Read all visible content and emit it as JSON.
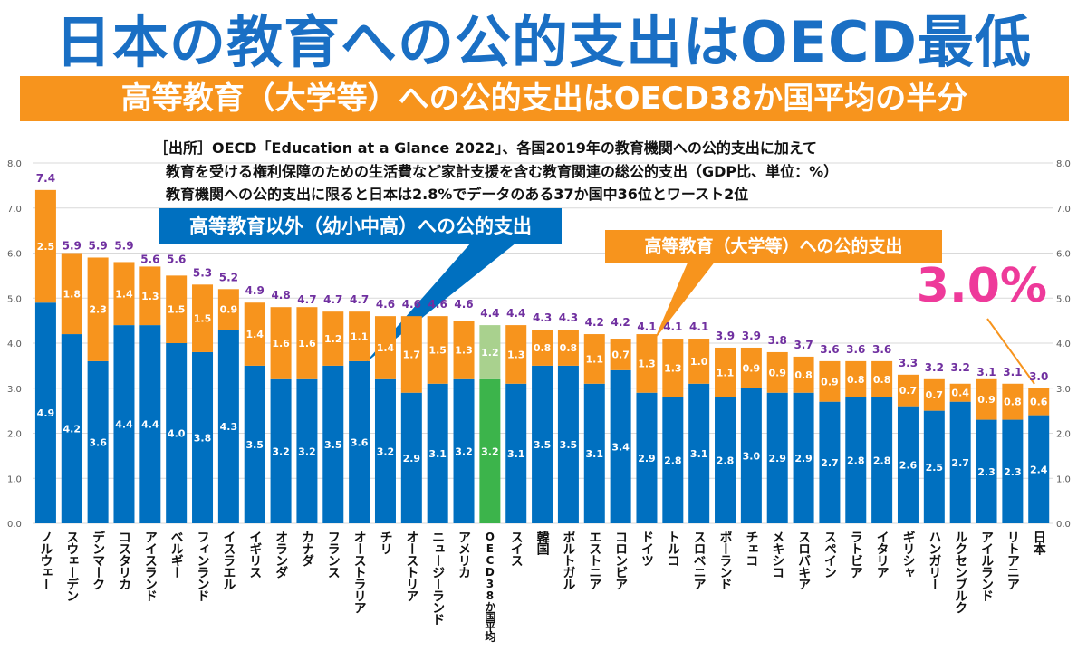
{
  "title": "日本の教育への公的支出はOECD最低",
  "subtitle": "高等教育（大学等）への公的支出はOECD38か国平均の半分",
  "source_lines": [
    "［出所］OECD「Education at a Glance 2022」、各国2019年の教育機関への公的支出に加えて",
    "教育を受ける権利保障のための生活費など家計支援を含む教育関連の総公的支出（GDP比、単位：%）",
    "教育機関への公的支出に限ると日本は2.8%でデータのある37か国中36位とワースト2位"
  ],
  "callouts": {
    "non_tertiary": "高等教育以外（幼小中高）への公的支出",
    "tertiary": "高等教育（大学等）への公的支出",
    "japan_total": "3.0%"
  },
  "colors": {
    "non_tertiary": "#0070c0",
    "tertiary": "#f7941d",
    "oecd_non_tertiary": "#3cb44b",
    "oecd_tertiary": "#a9d18e",
    "total_label": "#7030a0",
    "highlight": "#ee3a9a"
  },
  "chart_data": {
    "type": "bar",
    "stacked": true,
    "categories": [
      "ノルウェー",
      "スウェーデン",
      "デンマーク",
      "コスタリカ",
      "アイスランド",
      "ベルギー",
      "フィンランド",
      "イスラエル",
      "イギリス",
      "オランダ",
      "カナダ",
      "フランス",
      "オーストラリア",
      "チリ",
      "オーストリア",
      "ニュージーランド",
      "アメリカ",
      "OECD38か国平均",
      "スイス",
      "韓国",
      "ポルトガル",
      "エストニア",
      "コロンビア",
      "ドイツ",
      "トルコ",
      "スロベニア",
      "ポーランド",
      "チェコ",
      "メキシコ",
      "スロバキア",
      "スペイン",
      "ラトビア",
      "イタリア",
      "ギリシャ",
      "ハンガリー",
      "ルクセンブルク",
      "アイルランド",
      "リトアニア",
      "日本"
    ],
    "series": [
      {
        "name": "高等教育以外（幼小中高）への公的支出",
        "values": [
          4.9,
          4.2,
          3.6,
          4.4,
          4.4,
          4.0,
          3.8,
          4.3,
          3.5,
          3.2,
          3.2,
          3.5,
          3.6,
          3.2,
          2.9,
          3.1,
          3.2,
          3.2,
          3.1,
          3.5,
          3.5,
          3.1,
          3.4,
          2.9,
          2.8,
          3.1,
          2.8,
          3.0,
          2.9,
          2.9,
          2.7,
          2.8,
          2.8,
          2.6,
          2.5,
          2.7,
          2.3,
          2.3,
          2.4
        ]
      },
      {
        "name": "高等教育（大学等）への公的支出",
        "values": [
          2.5,
          1.8,
          2.3,
          1.4,
          1.3,
          1.5,
          1.5,
          0.9,
          1.4,
          1.6,
          1.6,
          1.2,
          1.1,
          1.4,
          1.7,
          1.5,
          1.3,
          1.2,
          1.3,
          0.8,
          0.8,
          1.1,
          0.7,
          1.3,
          1.3,
          1.0,
          1.1,
          0.9,
          0.9,
          0.8,
          0.9,
          0.8,
          0.8,
          0.7,
          0.7,
          0.4,
          0.9,
          0.8,
          0.6
        ]
      }
    ],
    "totals": [
      7.4,
      5.9,
      5.9,
      5.9,
      5.6,
      5.6,
      5.3,
      5.2,
      4.9,
      4.8,
      4.7,
      4.7,
      4.7,
      4.6,
      4.6,
      4.6,
      4.6,
      4.4,
      4.4,
      4.3,
      4.3,
      4.2,
      4.2,
      4.1,
      4.1,
      4.1,
      3.9,
      3.9,
      3.8,
      3.7,
      3.6,
      3.6,
      3.6,
      3.3,
      3.2,
      3.2,
      3.1,
      3.1,
      3.0
    ],
    "highlight_category": "OECD38か国平均",
    "ylim": [
      0,
      8
    ],
    "yticks": [
      "0.0",
      "1.0",
      "2.0",
      "3.0",
      "4.0",
      "5.0",
      "6.0",
      "7.0",
      "8.0"
    ],
    "grid": true
  }
}
